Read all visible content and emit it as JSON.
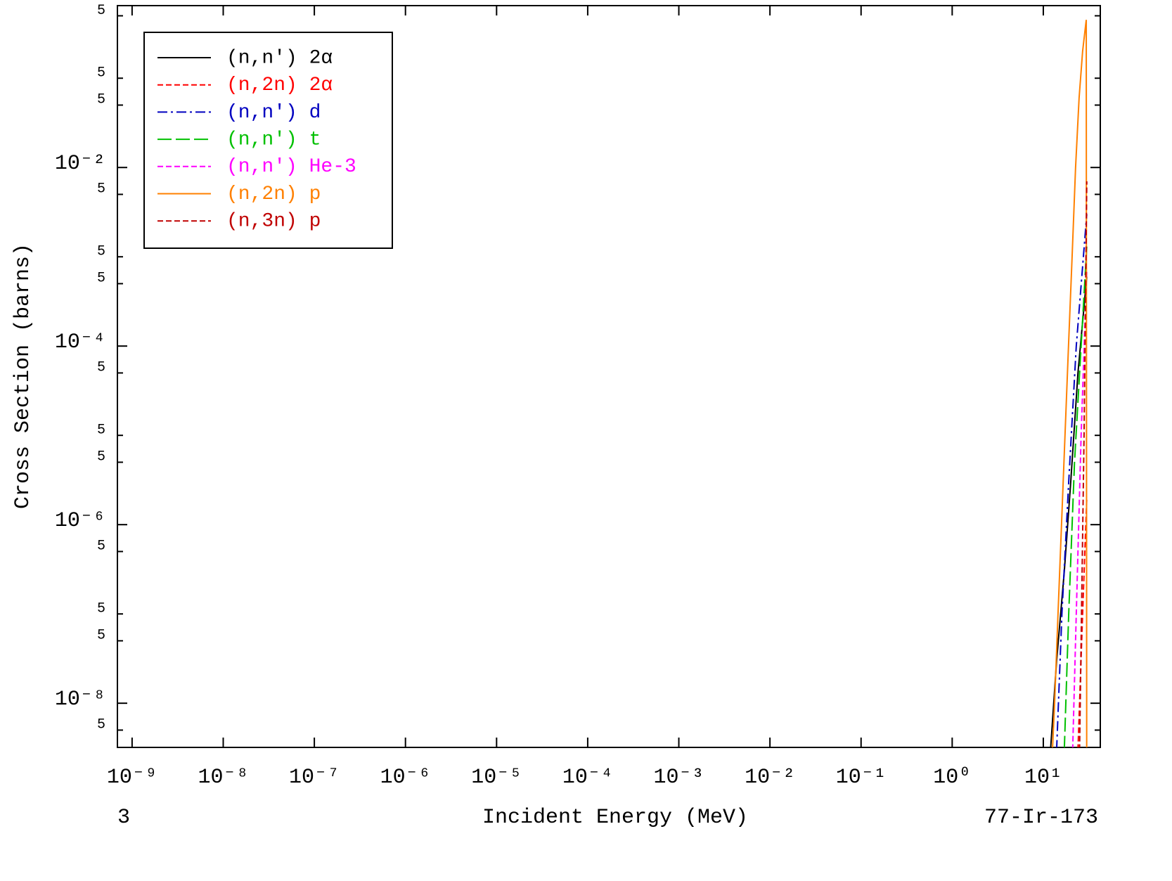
{
  "chart_data": {
    "type": "line",
    "x_label": "Incident Energy (MeV)",
    "y_label": "Cross Section (barns)",
    "footer_left": "3",
    "footer_right": "77-Ir-173",
    "log_x": true,
    "log_y": true,
    "xlim": [
      6.9e-10,
      42.2
    ],
    "ylim": [
      3.2e-09,
      0.65
    ],
    "xticks": [
      {
        "value": 1e-09,
        "label": "10⁻⁹"
      },
      {
        "value": 1e-08,
        "label": "10⁻⁸"
      },
      {
        "value": 1e-07,
        "label": "10⁻⁷"
      },
      {
        "value": 1e-06,
        "label": "10⁻⁶"
      },
      {
        "value": 1e-05,
        "label": "10⁻⁵"
      },
      {
        "value": 0.0001,
        "label": "10⁻⁴"
      },
      {
        "value": 0.001,
        "label": "10⁻³"
      },
      {
        "value": 0.01,
        "label": "10⁻²"
      },
      {
        "value": 0.1,
        "label": "10⁻¹"
      },
      {
        "value": 1,
        "label": "10⁰"
      },
      {
        "value": 10,
        "label": "10¹"
      }
    ],
    "yticks": [
      {
        "value": 5e-09,
        "label": "5"
      },
      {
        "value": 1e-08,
        "label": "10⁻⁸"
      },
      {
        "value": 5e-08,
        "label": "5"
      },
      {
        "value": 1e-07,
        "label": "5"
      },
      {
        "value": 5e-07,
        "label": "5"
      },
      {
        "value": 1e-06,
        "label": "10⁻⁶"
      },
      {
        "value": 5e-06,
        "label": "5"
      },
      {
        "value": 1e-05,
        "label": "5"
      },
      {
        "value": 5e-05,
        "label": "5"
      },
      {
        "value": 0.0001,
        "label": "10⁻⁴"
      },
      {
        "value": 0.0005,
        "label": "5"
      },
      {
        "value": 0.001,
        "label": "5"
      },
      {
        "value": 0.005,
        "label": "5"
      },
      {
        "value": 0.01,
        "label": "10⁻²"
      },
      {
        "value": 0.05,
        "label": "5"
      },
      {
        "value": 0.1,
        "label": "5"
      },
      {
        "value": 0.5,
        "label": "5"
      }
    ],
    "legend": "upper left",
    "series": [
      {
        "name": "(n,n′) 2α",
        "color": "#000000",
        "dash": "solid",
        "x": [
          12,
          14,
          17,
          20,
          24,
          30
        ],
        "values": [
          3e-09,
          3e-08,
          3e-07,
          3e-06,
          5e-05,
          0.0006
        ]
      },
      {
        "name": "(n,2n) 2α",
        "color": "#ff0000",
        "dash": "dashed",
        "x": [
          24,
          27,
          30
        ],
        "values": [
          3e-09,
          1e-07,
          2e-06
        ]
      },
      {
        "name": "(n,n′) d",
        "color": "#0000c0",
        "dash": "dashdot",
        "x": [
          14,
          16,
          19,
          23,
          30
        ],
        "values": [
          3e-09,
          1e-07,
          3e-06,
          0.0001,
          0.003
        ]
      },
      {
        "name": "(n,n′) t",
        "color": "#00c000",
        "dash": "longdash",
        "x": [
          17,
          19,
          22,
          26,
          30
        ],
        "values": [
          3e-09,
          1e-07,
          5e-06,
          0.0001,
          0.0013
        ]
      },
      {
        "name": "(n,n′) He-3",
        "color": "#ff00ff",
        "dash": "dashed",
        "x": [
          21,
          23,
          26,
          30
        ],
        "values": [
          3e-09,
          1e-07,
          1e-05,
          0.0007
        ]
      },
      {
        "name": "(n,2n) p",
        "color": "#ff8000",
        "dash": "solid",
        "x": [
          12.6,
          13.3,
          14.5,
          15.9,
          17.3,
          18.9,
          20.7,
          22.6,
          24.7,
          27.0,
          29.6,
          30
        ],
        "values": [
          3e-09,
          1e-08,
          1e-07,
          1.1e-06,
          1e-05,
          0.0001,
          0.001,
          0.01,
          0.06,
          0.2,
          0.45,
          1e-10
        ]
      },
      {
        "name": "(n,3n) p",
        "color": "#c00000",
        "dash": "dashed",
        "x": [
          25,
          28,
          30
        ],
        "values": [
          3e-09,
          1e-05,
          0.007
        ]
      }
    ]
  }
}
